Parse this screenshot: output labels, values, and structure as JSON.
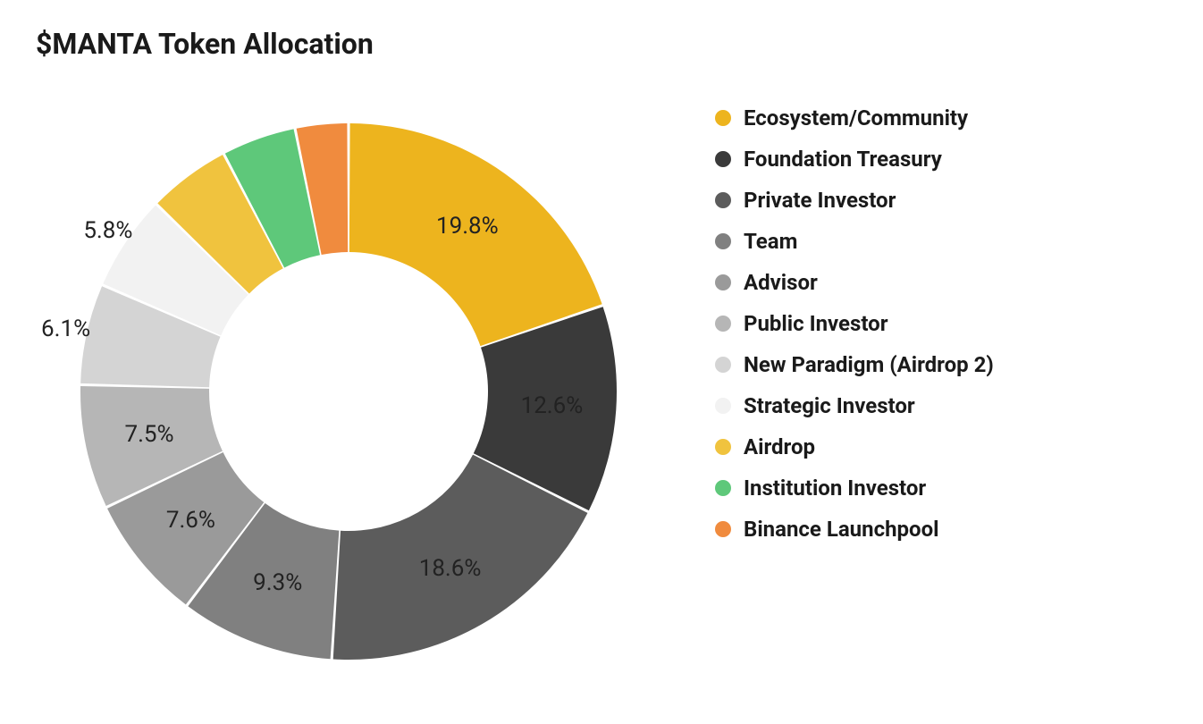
{
  "chart": {
    "type": "donut",
    "title": "$MANTA Token Allocation",
    "title_fontsize": 32,
    "title_fontweight": 700,
    "background_color": "#ffffff",
    "donut_inner_radius_ratio": 0.52,
    "label_fontsize": 26,
    "legend_fontsize": 24,
    "legend_fontweight": 700,
    "slice_gap_deg": 0.6,
    "slices": [
      {
        "label": "Ecosystem/Community",
        "value": 19.8,
        "color": "#edb41e",
        "show_label": true
      },
      {
        "label": "Foundation Treasury",
        "value": 12.6,
        "color": "#3a3a3a",
        "show_label": true
      },
      {
        "label": "Private Investor",
        "value": 18.6,
        "color": "#5c5c5c",
        "show_label": true
      },
      {
        "label": "Team",
        "value": 9.3,
        "color": "#808080",
        "show_label": true
      },
      {
        "label": "Advisor",
        "value": 7.6,
        "color": "#9a9a9a",
        "show_label": true
      },
      {
        "label": "Public Investor",
        "value": 7.5,
        "color": "#b6b6b6",
        "show_label": true
      },
      {
        "label": "New Paradigm (Airdrop 2)",
        "value": 6.1,
        "color": "#d4d4d4",
        "show_label": true
      },
      {
        "label": "Strategic Investor",
        "value": 5.8,
        "color": "#f2f2f2",
        "show_label": true
      },
      {
        "label": "Airdrop",
        "value": 5.0,
        "color": "#f0c33e",
        "show_label": false
      },
      {
        "label": "Institution Investor",
        "value": 4.5,
        "color": "#5ec87a",
        "show_label": false
      },
      {
        "label": "Binance Launchpool",
        "value": 3.2,
        "color": "#f08b3e",
        "show_label": false
      }
    ],
    "label_radius_ratio": 0.76,
    "outer_label_radius_ratio": 1.08
  }
}
